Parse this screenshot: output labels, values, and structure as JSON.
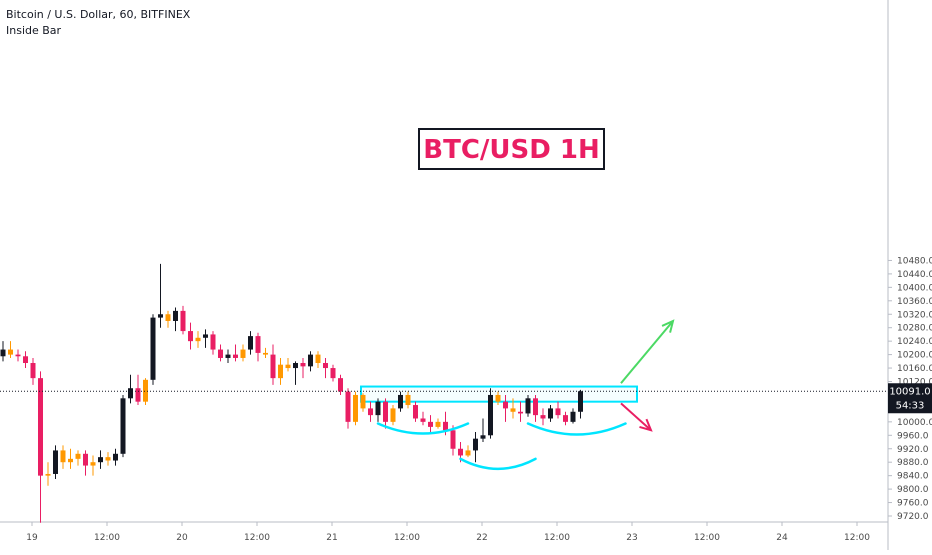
{
  "legend": {
    "symbol_line": "Bitcoin / U.S. Dollar, 60, BITFINEX",
    "indicator": "Inside Bar"
  },
  "price_tag": {
    "last_price": "10091.0",
    "countdown": "54:33"
  },
  "colors": {
    "up_candle": "#131722",
    "down_candle": "#e91e63",
    "inside_bar": "#ff9800",
    "range_box": "#00e5ff",
    "cup_arcs": "#00e5ff",
    "arrow_up": "#4cd964",
    "arrow_down": "#e91e63",
    "title_text": "#e91e63"
  },
  "chart_data": {
    "type": "candlestick",
    "title": "BTC/USD 1H",
    "symbol": "Bitcoin / U.S. Dollar",
    "interval": "60",
    "exchange": "BITFINEX",
    "y_axis": {
      "min": 9700,
      "max": 10490,
      "ticks": [
        10480,
        10440,
        10400,
        10360,
        10320,
        10280,
        10240,
        10200,
        10160,
        10120,
        10080,
        10040,
        10000,
        9960,
        9920,
        9880,
        9840,
        9800,
        9760,
        9720
      ],
      "tick_labels": [
        "10480.0",
        "10440.0",
        "10400.0",
        "10360.0",
        "10320.0",
        "10280.0",
        "10240.0",
        "10200.0",
        "10160.0",
        "10120.0",
        "10080.0",
        "10040.0",
        "10000.0",
        "9960.0",
        "9920.0",
        "9880.0",
        "9840.0",
        "9800.0",
        "9760.0",
        "9720.0"
      ]
    },
    "x_axis": {
      "ticks": [
        {
          "label": "19",
          "bar": 2
        },
        {
          "label": "12:00",
          "bar": 12
        },
        {
          "label": "20",
          "bar": 22
        },
        {
          "label": "12:00",
          "bar": 32
        },
        {
          "label": "21",
          "bar": 42
        },
        {
          "label": "12:00",
          "bar": 52
        },
        {
          "label": "22",
          "bar": 62
        },
        {
          "label": "12:00",
          "bar": 72
        },
        {
          "label": "23",
          "bar": 82
        },
        {
          "label": "12:00",
          "bar": 92
        },
        {
          "label": "24",
          "bar": 102
        },
        {
          "label": "12:00",
          "bar": 112
        }
      ]
    },
    "last_price": 10091.0,
    "candles": [
      [
        10195,
        10240,
        10180,
        10215
      ],
      [
        10215,
        10240,
        10190,
        10200
      ],
      [
        10200,
        10215,
        10180,
        10195
      ],
      [
        10195,
        10210,
        10160,
        10175
      ],
      [
        10175,
        10190,
        10110,
        10130
      ],
      [
        10130,
        10150,
        9700,
        9840
      ],
      [
        9840,
        9880,
        9810,
        9845
      ],
      [
        9845,
        9930,
        9830,
        9915
      ],
      [
        9915,
        9930,
        9860,
        9880
      ],
      [
        9880,
        9920,
        9860,
        9890
      ],
      [
        9890,
        9915,
        9870,
        9905
      ],
      [
        9905,
        9915,
        9840,
        9870
      ],
      [
        9870,
        9900,
        9840,
        9880
      ],
      [
        9880,
        9915,
        9860,
        9895
      ],
      [
        9895,
        9910,
        9870,
        9885
      ],
      [
        9885,
        9920,
        9870,
        9905
      ],
      [
        9905,
        10080,
        9895,
        10070
      ],
      [
        10070,
        10140,
        10055,
        10100
      ],
      [
        10100,
        10140,
        10050,
        10060
      ],
      [
        10060,
        10130,
        10050,
        10125
      ],
      [
        10125,
        10320,
        10110,
        10310
      ],
      [
        10310,
        10470,
        10280,
        10320
      ],
      [
        10320,
        10330,
        10280,
        10300
      ],
      [
        10300,
        10340,
        10270,
        10330
      ],
      [
        10330,
        10345,
        10260,
        10270
      ],
      [
        10270,
        10295,
        10215,
        10240
      ],
      [
        10240,
        10270,
        10220,
        10250
      ],
      [
        10250,
        10275,
        10220,
        10260
      ],
      [
        10260,
        10270,
        10200,
        10215
      ],
      [
        10215,
        10230,
        10180,
        10190
      ],
      [
        10190,
        10215,
        10175,
        10200
      ],
      [
        10200,
        10230,
        10180,
        10190
      ],
      [
        10190,
        10230,
        10180,
        10215
      ],
      [
        10215,
        10270,
        10200,
        10255
      ],
      [
        10255,
        10265,
        10180,
        10205
      ],
      [
        10205,
        10220,
        10190,
        10200
      ],
      [
        10200,
        10230,
        10110,
        10130
      ],
      [
        10130,
        10190,
        10110,
        10170
      ],
      [
        10170,
        10190,
        10150,
        10160
      ],
      [
        10160,
        10180,
        10110,
        10175
      ],
      [
        10175,
        10190,
        10130,
        10165
      ],
      [
        10165,
        10210,
        10150,
        10200
      ],
      [
        10200,
        10210,
        10160,
        10175
      ],
      [
        10175,
        10190,
        10130,
        10160
      ],
      [
        10160,
        10170,
        10120,
        10130
      ],
      [
        10130,
        10140,
        10080,
        10090
      ],
      [
        10090,
        10100,
        9980,
        10000
      ],
      [
        10000,
        10090,
        9990,
        10080
      ],
      [
        10080,
        10085,
        10030,
        10040
      ],
      [
        10040,
        10060,
        10000,
        10020
      ],
      [
        10020,
        10070,
        10000,
        10060
      ],
      [
        10060,
        10070,
        9980,
        10000
      ],
      [
        10000,
        10050,
        9990,
        10040
      ],
      [
        10040,
        10090,
        10030,
        10080
      ],
      [
        10080,
        10090,
        10040,
        10050
      ],
      [
        10050,
        10060,
        10000,
        10010
      ],
      [
        10010,
        10030,
        9990,
        10000
      ],
      [
        10000,
        10020,
        9970,
        9985
      ],
      [
        9985,
        10010,
        9980,
        10000
      ],
      [
        10000,
        10030,
        9960,
        9975
      ],
      [
        9975,
        9990,
        9900,
        9920
      ],
      [
        9920,
        9940,
        9880,
        9900
      ],
      [
        9900,
        9930,
        9895,
        9915
      ],
      [
        9915,
        9970,
        9880,
        9950
      ],
      [
        9950,
        10010,
        9940,
        9960
      ],
      [
        9960,
        10100,
        9950,
        10080
      ],
      [
        10080,
        10090,
        10050,
        10060
      ],
      [
        10060,
        10080,
        10000,
        10040
      ],
      [
        10040,
        10070,
        10010,
        10030
      ],
      [
        10030,
        10060,
        10000,
        10025
      ],
      [
        10025,
        10080,
        10015,
        10070
      ],
      [
        10070,
        10080,
        10000,
        10020
      ],
      [
        10020,
        10040,
        9990,
        10010
      ],
      [
        10010,
        10050,
        10000,
        10040
      ],
      [
        10040,
        10060,
        10010,
        10020
      ],
      [
        10020,
        10030,
        9990,
        10000
      ],
      [
        10000,
        10040,
        9995,
        10030
      ],
      [
        10030,
        10095,
        10010,
        10091
      ]
    ],
    "annotations": {
      "title_box": "BTC/USD 1H",
      "resistance_zone": {
        "from": 10060,
        "to": 10105
      },
      "arcs": "rounded bottoms (inverse head and shoulders) under price",
      "arrows": [
        "up-right green",
        "down-right red"
      ]
    }
  }
}
